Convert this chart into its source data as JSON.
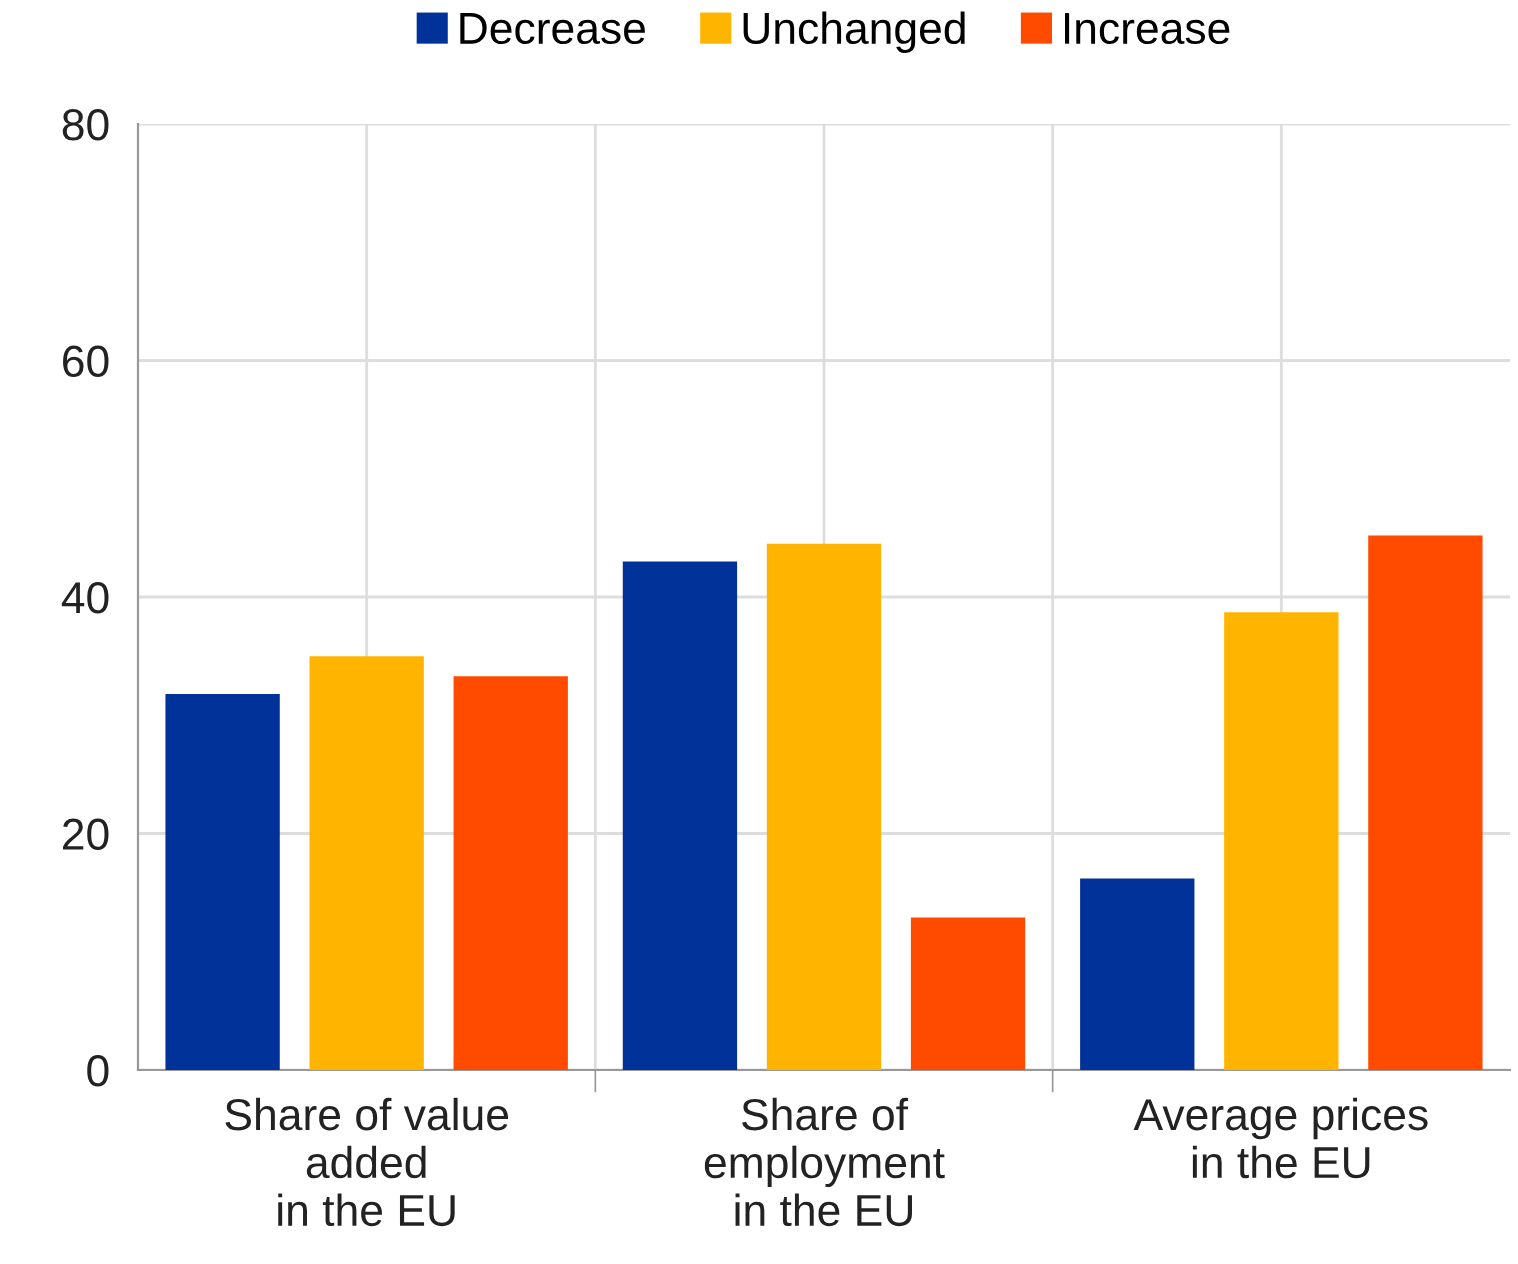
{
  "chart_data": {
    "type": "bar",
    "categories": [
      "Share of value\nadded\nin the EU",
      "Share of\nemployment\nin the EU",
      "Average prices\nin the EU"
    ],
    "series": [
      {
        "name": "Decrease",
        "color": "#003299",
        "values": [
          31.8,
          43.0,
          16.2
        ]
      },
      {
        "name": "Unchanged",
        "color": "#ffb400",
        "values": [
          35.0,
          44.5,
          38.7
        ]
      },
      {
        "name": "Increase",
        "color": "#ff4b00",
        "values": [
          33.3,
          12.9,
          45.2
        ]
      }
    ],
    "ylim": [
      0,
      80
    ],
    "yticks": [
      0,
      20,
      40,
      60,
      80
    ],
    "grid": true,
    "legend": "top"
  }
}
